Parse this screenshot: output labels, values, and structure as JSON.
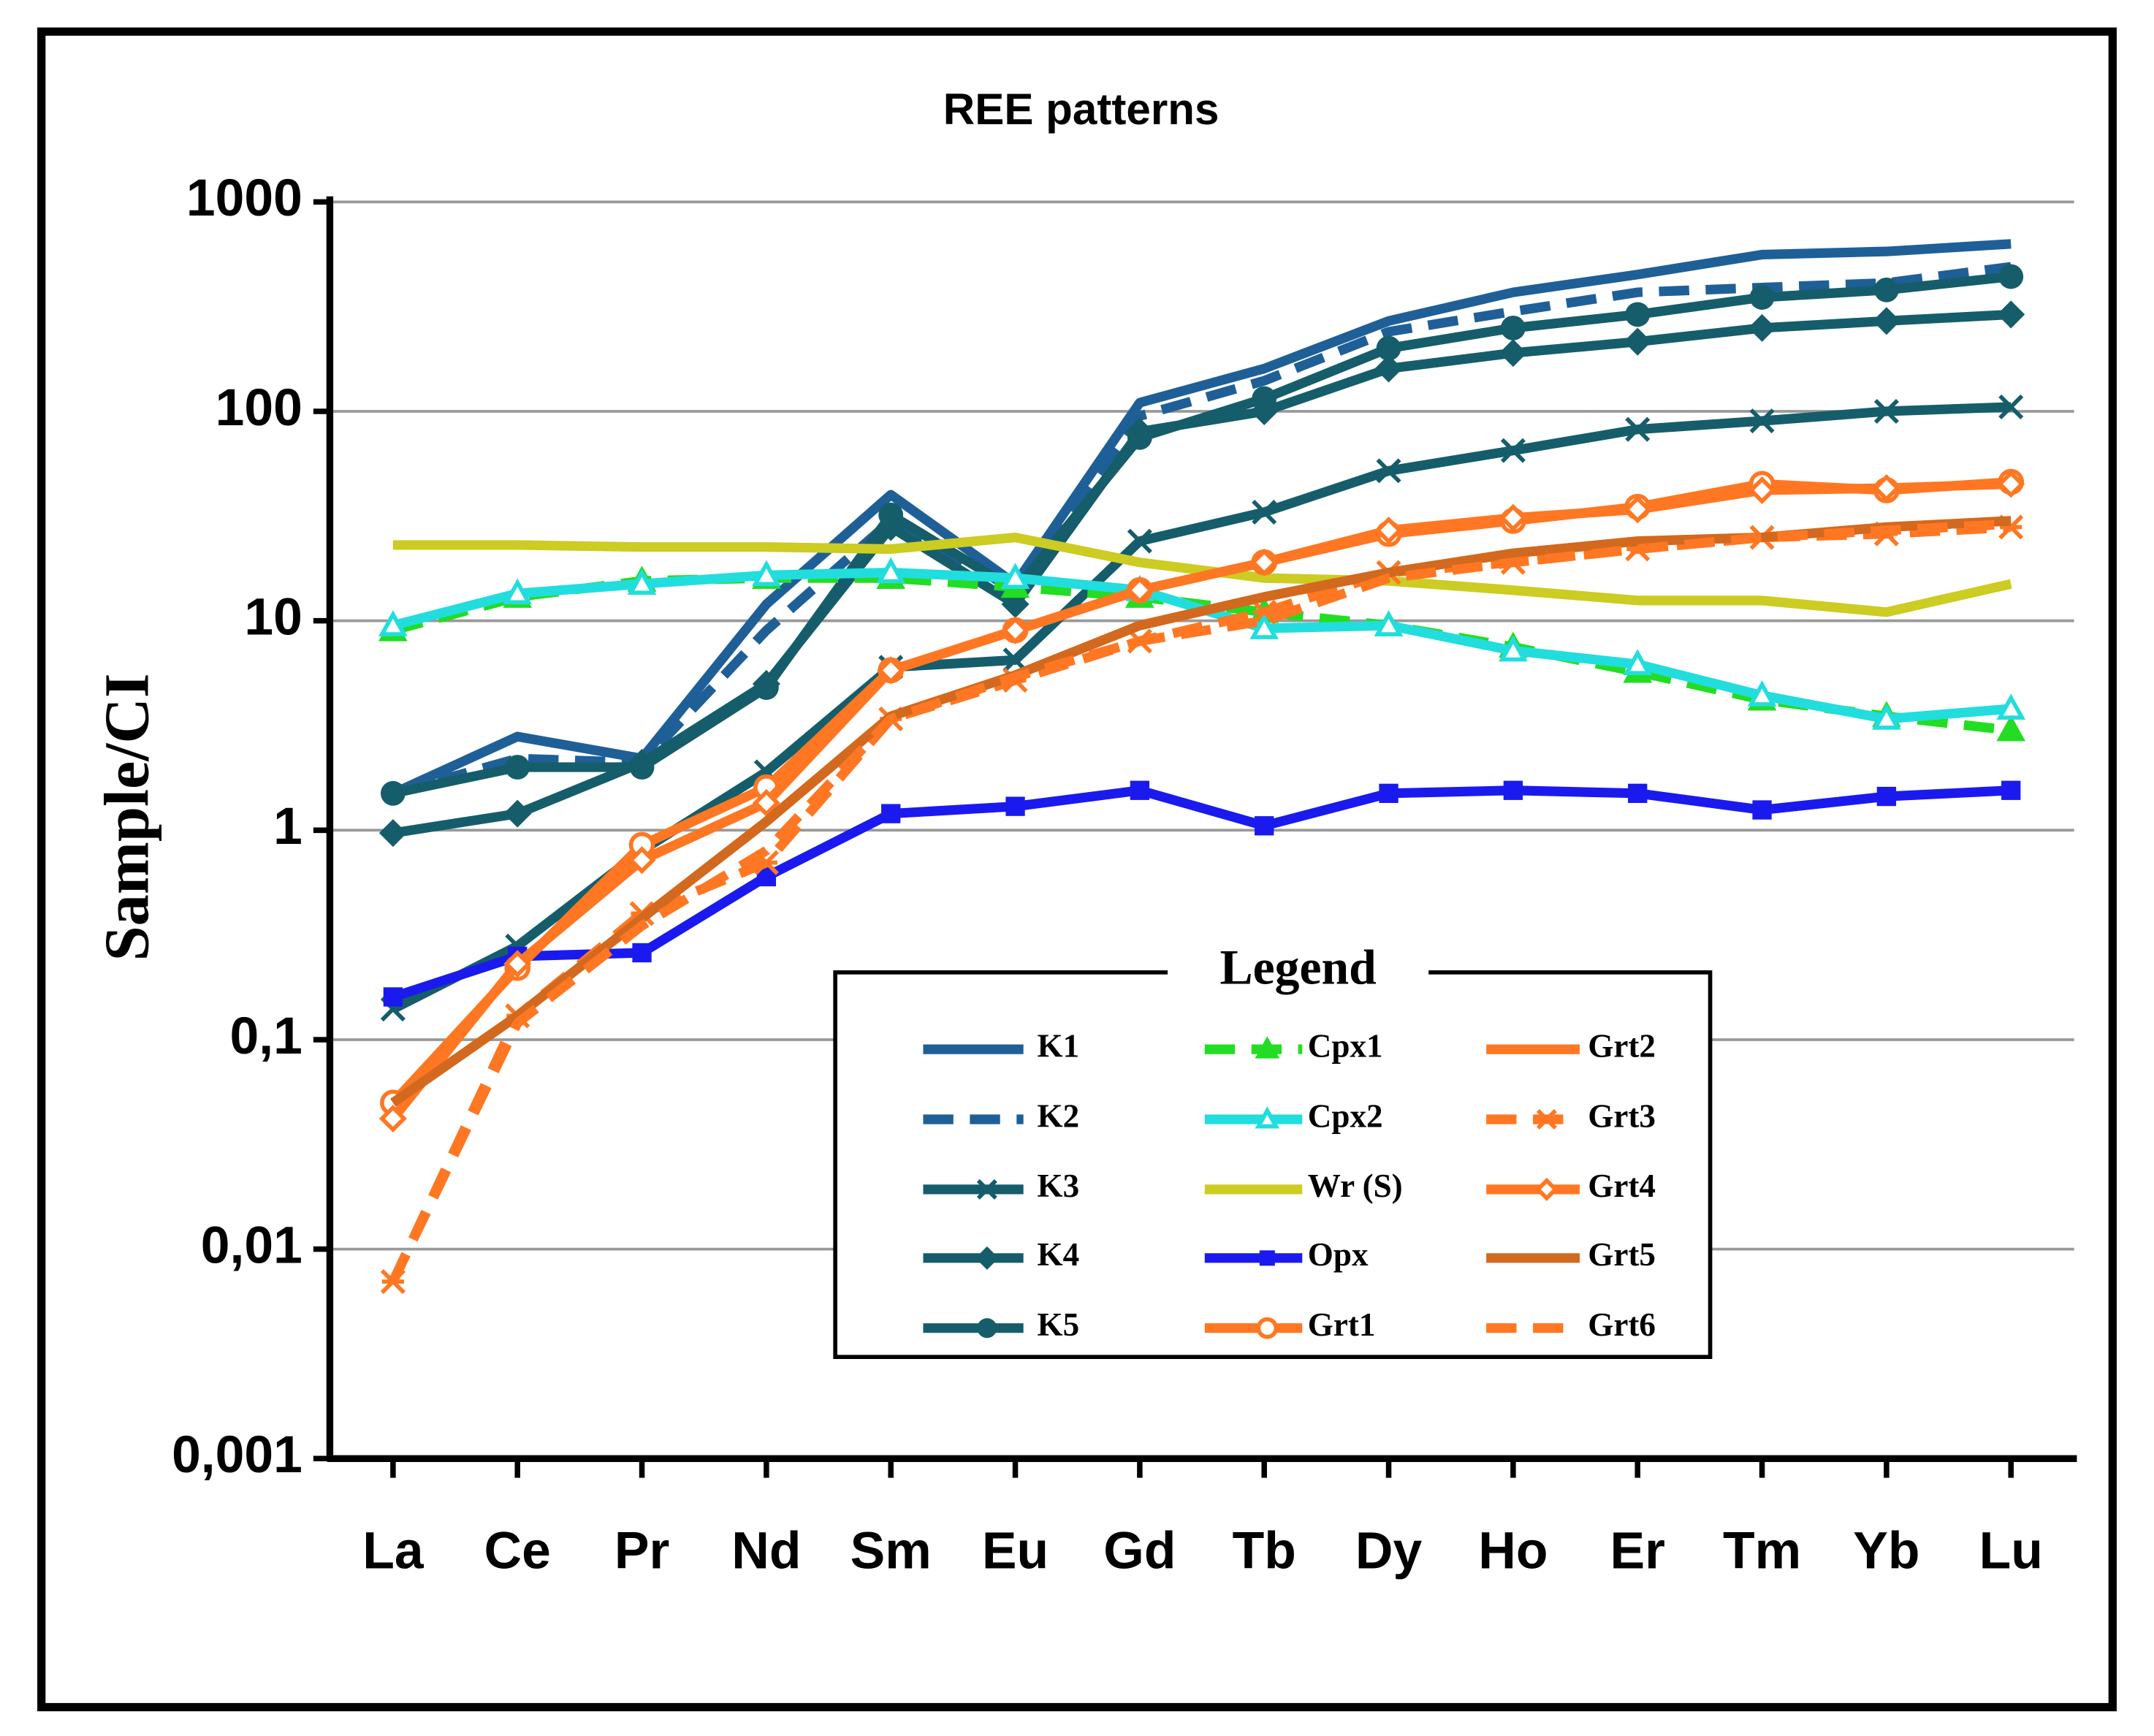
{
  "chart_data": {
    "type": "line",
    "title": "REE patterns",
    "ylabel": "Sample/CI",
    "legend_title": "Legend",
    "yscale": "log",
    "grid": true,
    "categories": [
      "La",
      "Ce",
      "Pr",
      "Nd",
      "Sm",
      "Eu",
      "Gd",
      "Tb",
      "Dy",
      "Ho",
      "Er",
      "Tm",
      "Yb",
      "Lu"
    ],
    "ylim": [
      0.001,
      1000
    ],
    "yticks": [
      {
        "value": 0.001,
        "label": "0,001"
      },
      {
        "value": 0.01,
        "label": "0,01"
      },
      {
        "value": 0.1,
        "label": "0,1"
      },
      1,
      10,
      100,
      1000
    ],
    "series": [
      {
        "name": "K1",
        "color": "#1f5f97",
        "dash": false,
        "marker": "none",
        "values": [
          1.5,
          2.8,
          2.2,
          12,
          40,
          15,
          110,
          160,
          270,
          370,
          450,
          560,
          580,
          630
        ]
      },
      {
        "name": "K2",
        "color": "#1f5f97",
        "dash": true,
        "marker": "none",
        "values": [
          1.5,
          2.2,
          2.1,
          9,
          30,
          14,
          95,
          140,
          240,
          300,
          370,
          390,
          410,
          490
        ]
      },
      {
        "name": "K3",
        "color": "#165d6b",
        "dash": false,
        "marker": "x",
        "values": [
          0.14,
          0.28,
          0.8,
          1.9,
          6,
          6.5,
          24,
          33,
          52,
          65,
          82,
          90,
          100,
          105
        ]
      },
      {
        "name": "K4",
        "color": "#165d6b",
        "dash": false,
        "marker": "diamond",
        "values": [
          0.97,
          1.2,
          2.1,
          5,
          28,
          12,
          80,
          100,
          160,
          190,
          215,
          250,
          270,
          290
        ]
      },
      {
        "name": "K5",
        "color": "#165d6b",
        "dash": false,
        "marker": "circle",
        "values": [
          1.5,
          2,
          2,
          4.8,
          32,
          14,
          75,
          115,
          200,
          250,
          290,
          350,
          380,
          440
        ]
      },
      {
        "name": "Cpx1",
        "color": "#22dd22",
        "dash": true,
        "marker": "triangle",
        "values": [
          9,
          13,
          15.5,
          16,
          16,
          14.5,
          13,
          11,
          9.5,
          7.5,
          5.7,
          4.2,
          3.5,
          3.0
        ]
      },
      {
        "name": "Cpx2",
        "color": "#22dddd",
        "dash": false,
        "marker": "open-triangle",
        "values": [
          9.5,
          13.5,
          15,
          16.5,
          17,
          16,
          14,
          9.2,
          9.5,
          7.2,
          6.2,
          4.4,
          3.4,
          3.8
        ]
      },
      {
        "name": "Wr (S)",
        "color": "#cccc22",
        "dash": false,
        "marker": "none",
        "values": [
          23,
          23,
          22.5,
          22.5,
          22,
          25,
          19,
          16,
          15.5,
          14,
          12.5,
          12.5,
          11,
          15
        ]
      },
      {
        "name": "Opx",
        "color": "#1a1aee",
        "dash": false,
        "marker": "square",
        "values": [
          0.16,
          0.25,
          0.26,
          0.6,
          1.2,
          1.3,
          1.55,
          1.05,
          1.5,
          1.55,
          1.5,
          1.25,
          1.45,
          1.55
        ]
      },
      {
        "name": "Grt1",
        "color": "#ff7722",
        "dash": false,
        "marker": "open-circle",
        "values": [
          0.05,
          0.22,
          0.85,
          1.6,
          5.8,
          9,
          14,
          19,
          26,
          30,
          35,
          45,
          42,
          46
        ]
      },
      {
        "name": "Grt2",
        "color": "#ff7722",
        "dash": false,
        "marker": "none",
        "values": [
          0.05,
          0.13,
          0.38,
          1.1,
          3.5,
          5.5,
          9.5,
          13,
          17,
          21,
          24,
          25,
          28,
          30
        ]
      },
      {
        "name": "Grt3",
        "color": "#ff7722",
        "dash": true,
        "marker": "asterisk",
        "values": [
          0.007,
          0.13,
          0.4,
          0.7,
          3.4,
          5.2,
          8,
          11,
          17,
          19,
          22,
          25,
          26,
          28
        ]
      },
      {
        "name": "Grt4",
        "color": "#ff7722",
        "dash": false,
        "marker": "open-diamond",
        "values": [
          0.042,
          0.23,
          0.72,
          1.35,
          5.8,
          9,
          14,
          19,
          27,
          31,
          34,
          42,
          43,
          45
        ]
      },
      {
        "name": "Grt5",
        "color": "#d2691e",
        "dash": false,
        "marker": "none",
        "values": [
          0.05,
          0.13,
          0.38,
          1.1,
          3.5,
          5.5,
          9.5,
          13,
          17,
          21,
          24,
          25,
          28,
          30
        ]
      },
      {
        "name": "Grt6",
        "color": "#ff7722",
        "dash": true,
        "marker": "none",
        "values": [
          0.007,
          0.12,
          0.35,
          0.8,
          3.4,
          5.4,
          8,
          10,
          16,
          19,
          22,
          25,
          27,
          29
        ]
      }
    ]
  }
}
